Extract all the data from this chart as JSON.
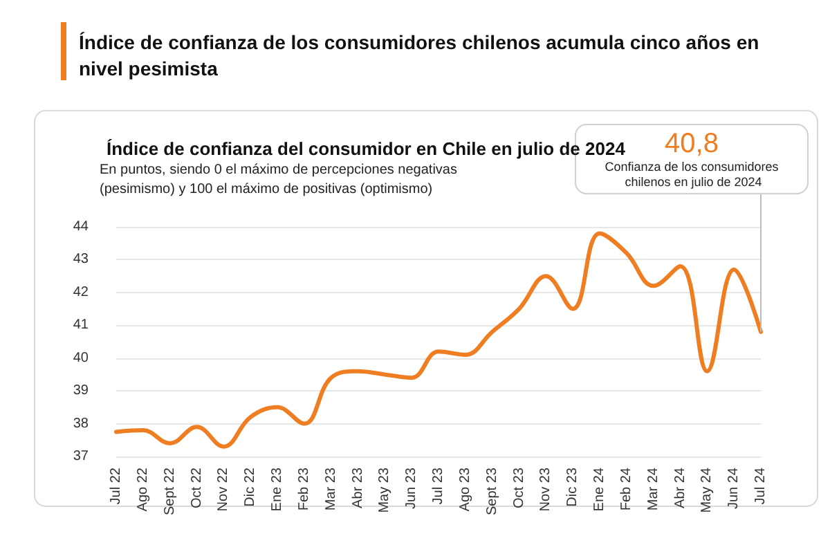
{
  "chart_data": {
    "type": "line",
    "title": "Índice de confianza de los consumidores chilenos acumula cinco años en nivel pesimista",
    "subtitle": "Índice de confianza del consumidor en Chile en julio de 2024",
    "categories": [
      "Jul 22",
      "Ago 22",
      "Sept 22",
      "Oct 22",
      "Nov 22",
      "Dic 22",
      "Ene 23",
      "Feb 23",
      "Mar 23",
      "Abr 23",
      "May 23",
      "Jun 23",
      "Jul 23",
      "Ago 23",
      "Sept 23",
      "Oct 23",
      "Nov 23",
      "Dic 23",
      "Ene 24",
      "Feb 24",
      "Mar 24",
      "Abr 24",
      "May 24",
      "Jun 24",
      "Jul 24"
    ],
    "series": [
      {
        "color": "#ef7d22",
        "values": [
          37.75,
          37.8,
          37.4,
          37.9,
          37.3,
          38.2,
          38.5,
          38.0,
          39.4,
          39.6,
          39.5,
          39.4,
          40.2,
          40.1,
          40.8,
          41.5,
          42.5,
          41.5,
          43.8,
          43.2,
          42.2,
          42.8,
          39.6,
          42.7,
          40.8
        ]
      }
    ],
    "ylim": [
      37,
      44
    ],
    "yticks": [
      37,
      38,
      39,
      40,
      41,
      42,
      43,
      44
    ],
    "grid": "y",
    "marker": "none",
    "line_style": "solid",
    "annotations": [
      "En puntos, siendo 0 el máximo de percepciones negativas (pesimismo) y 100 el máximo de positivas (optimismo)",
      "40,8",
      "Confianza de los consumidores chilenos en julio de 2024"
    ]
  }
}
